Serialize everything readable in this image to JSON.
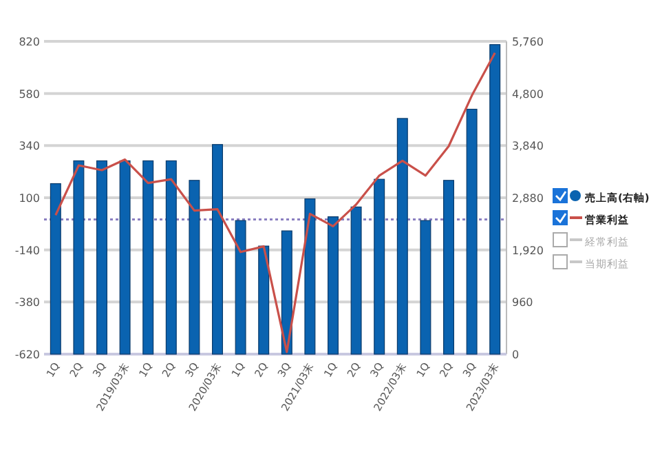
{
  "chart_data": {
    "type": "bar",
    "categories": [
      "1Q",
      "2Q",
      "3Q",
      "2019/03末",
      "1Q",
      "2Q",
      "3Q",
      "2020/03末",
      "1Q",
      "2Q",
      "3Q",
      "2021/03末",
      "1Q",
      "2Q",
      "3Q",
      "2022/03末",
      "1Q",
      "2Q",
      "3Q",
      "2023/03末"
    ],
    "series": [
      {
        "name": "売上高(右軸)",
        "axis": "y2",
        "color": "#0a63b0",
        "values": [
          3140,
          3560,
          3560,
          3560,
          3560,
          3560,
          3200,
          3860,
          2460,
          1990,
          2270,
          2860,
          2530,
          2710,
          3220,
          4340,
          2460,
          3200,
          4510,
          5700
        ]
      },
      {
        "name": "営業利益",
        "type": "line",
        "color": "#c9504a",
        "values": [
          20,
          249,
          227,
          276,
          168,
          185,
          41,
          47,
          -150,
          -124,
          -610,
          26,
          -31,
          69,
          202,
          270,
          202,
          337,
          570,
          767
        ]
      },
      {
        "name": "経常利益",
        "type": "line",
        "color": "#c8c8c8",
        "values": [
          null,
          null,
          null,
          null,
          null,
          null,
          null,
          null,
          null,
          null,
          null,
          null,
          null,
          null,
          null,
          null,
          null,
          null,
          null,
          null
        ]
      },
      {
        "name": "当期利益",
        "type": "line",
        "color": "#c8c8c8",
        "values": [
          null,
          null,
          null,
          null,
          null,
          null,
          null,
          null,
          null,
          null,
          null,
          null,
          null,
          null,
          null,
          null,
          null,
          null,
          null,
          null
        ]
      }
    ],
    "ylim": [
      -620,
      820
    ],
    "yticks": [
      -620,
      -380,
      -140,
      100,
      340,
      580,
      820
    ],
    "y2lim": [
      0,
      5760
    ],
    "y2ticks": [
      {
        "value": 0,
        "label": "0"
      },
      {
        "value": 960,
        "label": "960"
      },
      {
        "value": 1920,
        "label": "1,920"
      },
      {
        "value": 2880,
        "label": "2,880"
      },
      {
        "value": 3840,
        "label": "3,840"
      },
      {
        "value": 4800,
        "label": "4,800"
      },
      {
        "value": 5760,
        "label": "5,760"
      }
    ],
    "ref_lines": [
      {
        "axis": "y",
        "value": 0,
        "color": "#8a7fc0",
        "line_style": "dotted"
      }
    ],
    "grid": "y",
    "legend": "right"
  }
}
